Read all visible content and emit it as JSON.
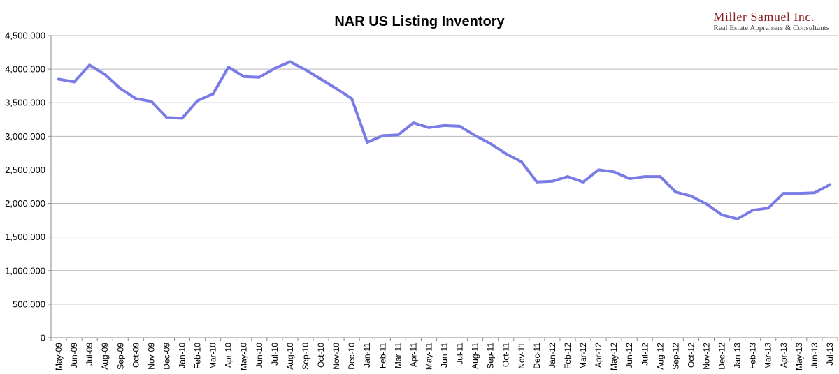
{
  "brand": {
    "name": "Miller Samuel Inc.",
    "tagline": "Real Estate Appraisers & Consultants"
  },
  "chart_data": {
    "type": "line",
    "title": "NAR US Listing Inventory",
    "xlabel": "",
    "ylabel": "",
    "ylim": [
      0,
      4500000
    ],
    "yticks": [
      0,
      500000,
      1000000,
      1500000,
      2000000,
      2500000,
      3000000,
      3500000,
      4000000,
      4500000
    ],
    "ytick_labels": [
      "0",
      "500,000",
      "1,000,000",
      "1,500,000",
      "2,000,000",
      "2,500,000",
      "3,000,000",
      "3,500,000",
      "4,000,000",
      "4,500,000"
    ],
    "grid": true,
    "legend": "none",
    "line_color": "#7b7be6",
    "categories": [
      "May-09",
      "Jun-09",
      "Jul-09",
      "Aug-09",
      "Sep-09",
      "Oct-09",
      "Nov-09",
      "Dec-09",
      "Jan-10",
      "Feb-10",
      "Mar-10",
      "Apr-10",
      "May-10",
      "Jun-10",
      "Jul-10",
      "Aug-10",
      "Sep-10",
      "Oct-10",
      "Nov-10",
      "Dec-10",
      "Jan-11",
      "Feb-11",
      "Mar-11",
      "Apr-11",
      "May-11",
      "Jun-11",
      "Jul-11",
      "Aug-11",
      "Sep-11",
      "Oct-11",
      "Nov-11",
      "Dec-11",
      "Jan-12",
      "Feb-12",
      "Mar-12",
      "Apr-12",
      "May-12",
      "Jun-12",
      "Jul-12",
      "Aug-12",
      "Sep-12",
      "Oct-12",
      "Nov-12",
      "Dec-12",
      "Jan-13",
      "Feb-13",
      "Mar-13",
      "Apr-13",
      "May-13",
      "Jun-13",
      "Jul-13"
    ],
    "series": [
      {
        "values": [
          3850000,
          3810000,
          4060000,
          3920000,
          3710000,
          3560000,
          3520000,
          3280000,
          3270000,
          3530000,
          3630000,
          4030000,
          3890000,
          3880000,
          4010000,
          4110000,
          3990000,
          3850000,
          3710000,
          3560000,
          2910000,
          3010000,
          3020000,
          3200000,
          3130000,
          3160000,
          3150000,
          3010000,
          2890000,
          2740000,
          2620000,
          2320000,
          2330000,
          2400000,
          2320000,
          2500000,
          2470000,
          2370000,
          2400000,
          2400000,
          2170000,
          2110000,
          1990000,
          1830000,
          1770000,
          1900000,
          1930000,
          2150000,
          2150000,
          2160000,
          2280000
        ]
      }
    ]
  }
}
